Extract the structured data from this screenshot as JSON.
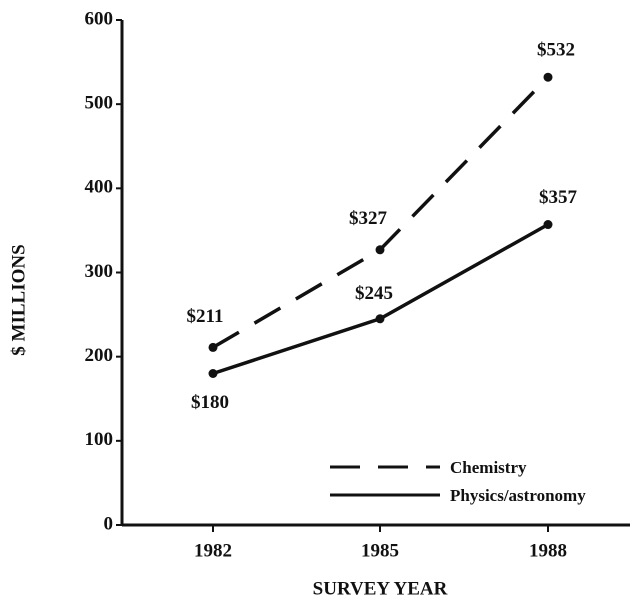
{
  "chart_data": {
    "type": "line",
    "xlabel": "SURVEY YEAR",
    "ylabel": "$ MILLIONS",
    "categories": [
      "1982",
      "1985",
      "1988"
    ],
    "series": [
      {
        "name": "Chemistry",
        "color": "#111111",
        "dash": "dashed",
        "values": [
          211,
          327,
          532
        ],
        "value_labels": [
          "$211",
          "$327",
          "$532"
        ]
      },
      {
        "name": "Physics/astronomy",
        "color": "#111111",
        "dash": "solid",
        "values": [
          180,
          245,
          357
        ],
        "value_labels": [
          "$180",
          "$245",
          "$357"
        ]
      }
    ],
    "ylim": [
      0,
      600
    ],
    "yticks": [
      0,
      100,
      200,
      300,
      400,
      500,
      600
    ],
    "grid": false,
    "legend": "lower right"
  }
}
